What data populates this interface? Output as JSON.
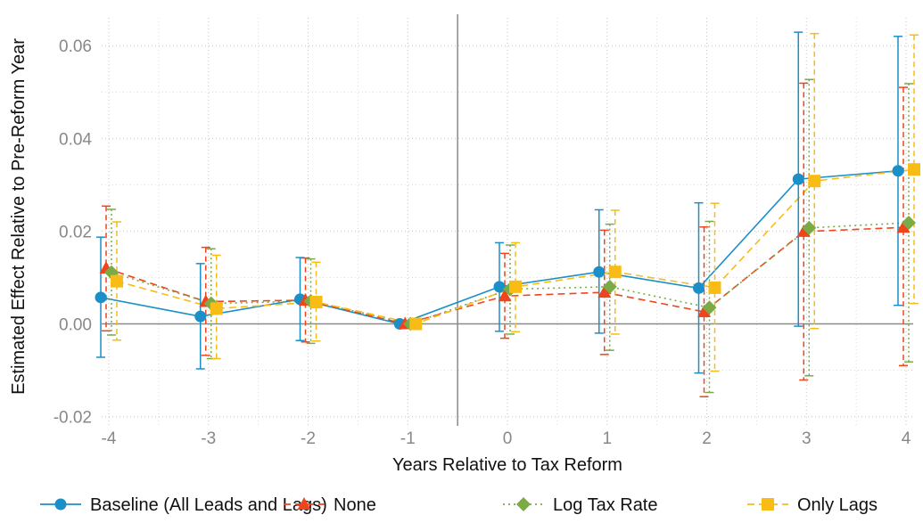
{
  "chart_data": {
    "type": "line",
    "title": "",
    "xlabel": "Years Relative to Tax Reform",
    "ylabel": "Estimated Effect Relative to Pre-Reform Year",
    "x": [
      -4,
      -3,
      -2,
      -1,
      0,
      1,
      2,
      3,
      4
    ],
    "x_ticks": [
      "-4",
      "-3",
      "-2",
      "-1",
      "0",
      "1",
      "2",
      "3",
      "4"
    ],
    "ylim": [
      -0.022,
      0.066
    ],
    "y_ticks": [
      "-0.02",
      "0.00",
      "0.02",
      "0.04",
      "0.06"
    ],
    "reference_line_x": -0.5,
    "reference_line_y": 0.0,
    "grid": "dotted",
    "legend_position": "bottom",
    "series": [
      {
        "name": "Baseline (All Leads and Lags)",
        "color": "#1a8fc8",
        "marker": "circle",
        "line_style": "solid",
        "values": [
          0.0057,
          0.0016,
          0.0053,
          0.0,
          0.008,
          0.0112,
          0.0077,
          0.0312,
          0.033
        ],
        "ci_low": [
          -0.0072,
          -0.0097,
          -0.0036,
          0.0,
          -0.0016,
          -0.002,
          -0.0106,
          -0.0005,
          0.004
        ],
        "ci_high": [
          0.0187,
          0.013,
          0.0143,
          0.0,
          0.0175,
          0.0246,
          0.0261,
          0.0629,
          0.062
        ]
      },
      {
        "name": "None",
        "color": "#f0441c",
        "marker": "triangle",
        "line_style": "dashed",
        "values": [
          0.012,
          0.0048,
          0.0051,
          0.0,
          0.006,
          0.0068,
          0.0026,
          0.0199,
          0.0208
        ],
        "ci_low": [
          -0.0015,
          -0.0068,
          -0.0039,
          0.0,
          -0.0031,
          -0.0066,
          -0.0157,
          -0.0121,
          -0.009
        ],
        "ci_high": [
          0.0254,
          0.0165,
          0.0142,
          0.0,
          0.0152,
          0.0202,
          0.0209,
          0.0519,
          0.051
        ]
      },
      {
        "name": "Log Tax Rate",
        "color": "#7aab46",
        "marker": "diamond",
        "line_style": "dotted",
        "values": [
          0.0111,
          0.0044,
          0.0049,
          0.0,
          0.0075,
          0.008,
          0.0035,
          0.0207,
          0.0218
        ],
        "ci_low": [
          -0.0024,
          -0.0075,
          -0.0042,
          0.0,
          -0.0022,
          -0.0057,
          -0.0148,
          -0.0112,
          -0.0082
        ],
        "ci_high": [
          0.0247,
          0.0162,
          0.014,
          0.0,
          0.017,
          0.0215,
          0.0221,
          0.0527,
          0.0518
        ]
      },
      {
        "name": "Only Lags",
        "color": "#f8bc14",
        "marker": "square",
        "line_style": "dashed",
        "values": [
          0.0092,
          0.0033,
          0.0047,
          0.0,
          0.008,
          0.0112,
          0.0078,
          0.0308,
          0.0333
        ],
        "ci_low": [
          -0.0035,
          -0.0075,
          -0.0037,
          0.0,
          -0.0017,
          -0.0022,
          -0.0102,
          -0.001,
          0.0044
        ],
        "ci_high": [
          0.022,
          0.0148,
          0.0133,
          0.0,
          0.0175,
          0.0245,
          0.026,
          0.0626,
          0.0623
        ]
      }
    ]
  }
}
